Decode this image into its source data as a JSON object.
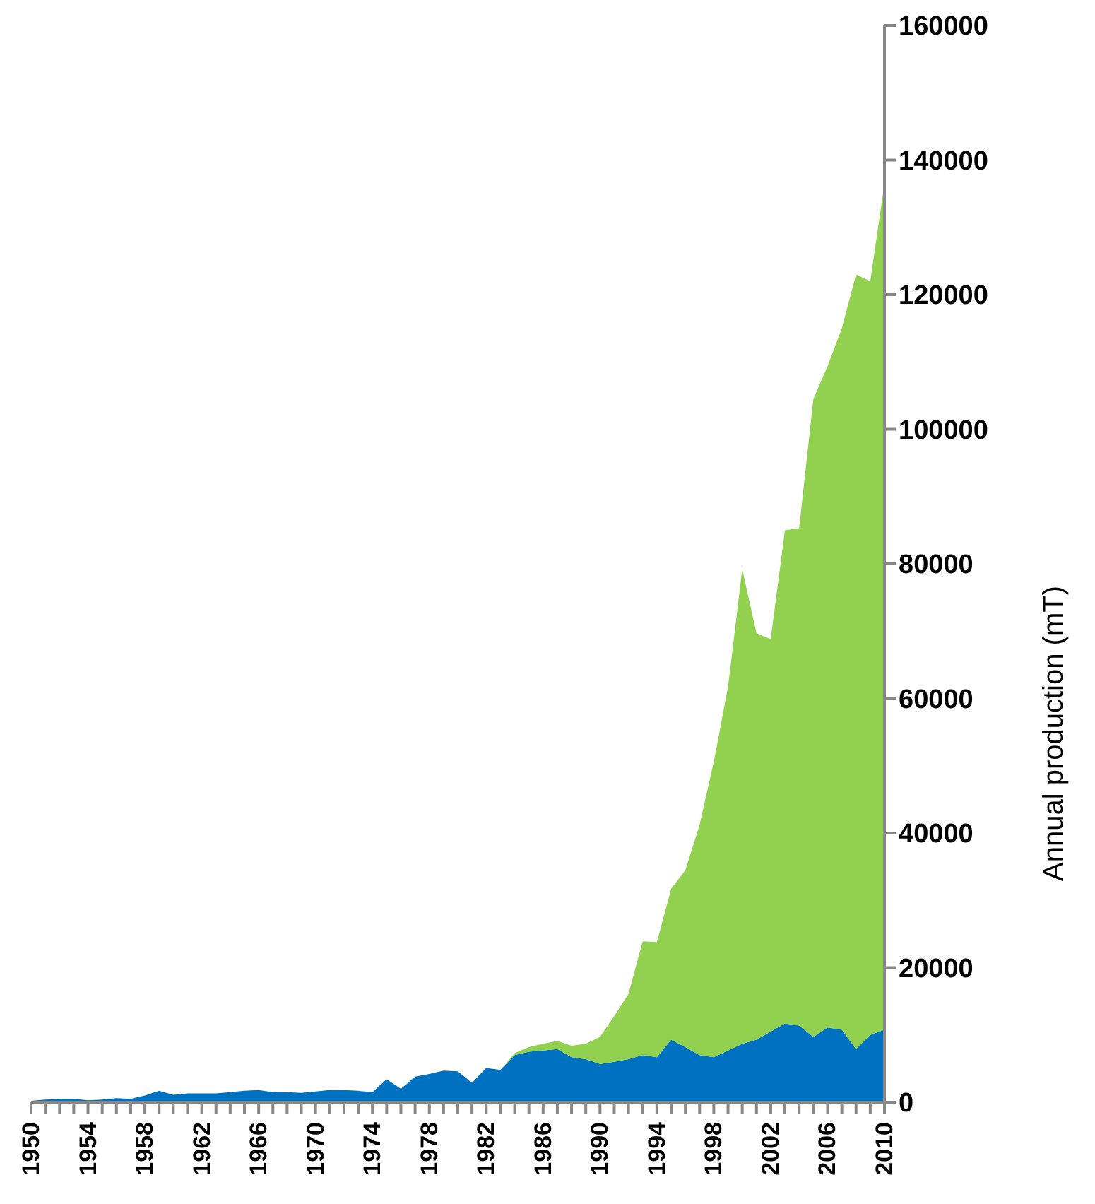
{
  "chart_data": {
    "type": "area",
    "stacked": true,
    "ylabel": "Annual production (mT)",
    "x": [
      1950,
      1951,
      1952,
      1953,
      1954,
      1955,
      1956,
      1957,
      1958,
      1959,
      1960,
      1961,
      1962,
      1963,
      1964,
      1965,
      1966,
      1967,
      1968,
      1969,
      1970,
      1971,
      1972,
      1973,
      1974,
      1975,
      1976,
      1977,
      1978,
      1979,
      1980,
      1981,
      1982,
      1983,
      1984,
      1985,
      1986,
      1987,
      1988,
      1989,
      1990,
      1991,
      1992,
      1993,
      1994,
      1995,
      1996,
      1997,
      1998,
      1999,
      2000,
      2001,
      2002,
      2003,
      2004,
      2005,
      2006,
      2007,
      2008,
      2009,
      2010
    ],
    "series": [
      {
        "color": "#0070c0",
        "values": [
          200,
          400,
          500,
          500,
          300,
          400,
          600,
          500,
          1000,
          1700,
          1100,
          1300,
          1300,
          1300,
          1500,
          1700,
          1800,
          1500,
          1500,
          1400,
          1600,
          1800,
          1800,
          1700,
          1500,
          3400,
          2000,
          3800,
          4200,
          4700,
          4600,
          2900,
          5100,
          4800,
          7000,
          7500,
          7700,
          7900,
          6700,
          6400,
          5700,
          6000,
          6400,
          7000,
          6700,
          9300,
          8200,
          7000,
          6700,
          7700,
          8700,
          9300,
          10500,
          11700,
          11400,
          9700,
          11100,
          10800,
          7900,
          10000,
          10800
        ]
      },
      {
        "color": "#92d050",
        "values": [
          0,
          0,
          0,
          0,
          0,
          0,
          0,
          0,
          0,
          0,
          0,
          0,
          0,
          0,
          0,
          0,
          0,
          0,
          0,
          0,
          0,
          0,
          0,
          0,
          0,
          0,
          0,
          0,
          0,
          0,
          0,
          0,
          0,
          0,
          300,
          700,
          1000,
          1200,
          1700,
          2300,
          4000,
          6800,
          9700,
          16900,
          17100,
          22400,
          26300,
          34200,
          43900,
          54000,
          70500,
          60400,
          58300,
          73300,
          73900,
          94800,
          98300,
          104200,
          115100,
          112000,
          125700
        ]
      }
    ],
    "xlim": [
      1950,
      2010
    ],
    "xticks": [
      1950,
      {
        "value": 1951,
        "label": null
      },
      {
        "value": 1952,
        "label": null
      },
      {
        "value": 1953,
        "label": null
      },
      1954,
      {
        "value": 1955,
        "label": null
      },
      {
        "value": 1956,
        "label": null
      },
      {
        "value": 1957,
        "label": null
      },
      1958,
      {
        "value": 1959,
        "label": null
      },
      {
        "value": 1960,
        "label": null
      },
      {
        "value": 1961,
        "label": null
      },
      1962,
      {
        "value": 1963,
        "label": null
      },
      {
        "value": 1964,
        "label": null
      },
      {
        "value": 1965,
        "label": null
      },
      1966,
      {
        "value": 1967,
        "label": null
      },
      {
        "value": 1968,
        "label": null
      },
      {
        "value": 1969,
        "label": null
      },
      1970,
      {
        "value": 1971,
        "label": null
      },
      {
        "value": 1972,
        "label": null
      },
      {
        "value": 1973,
        "label": null
      },
      1974,
      {
        "value": 1975,
        "label": null
      },
      {
        "value": 1976,
        "label": null
      },
      {
        "value": 1977,
        "label": null
      },
      1978,
      {
        "value": 1979,
        "label": null
      },
      {
        "value": 1980,
        "label": null
      },
      {
        "value": 1981,
        "label": null
      },
      1982,
      {
        "value": 1983,
        "label": null
      },
      {
        "value": 1984,
        "label": null
      },
      {
        "value": 1985,
        "label": null
      },
      1986,
      {
        "value": 1987,
        "label": null
      },
      {
        "value": 1988,
        "label": null
      },
      {
        "value": 1989,
        "label": null
      },
      1990,
      {
        "value": 1991,
        "label": null
      },
      {
        "value": 1992,
        "label": null
      },
      {
        "value": 1993,
        "label": null
      },
      1994,
      {
        "value": 1995,
        "label": null
      },
      {
        "value": 1996,
        "label": null
      },
      {
        "value": 1997,
        "label": null
      },
      1998,
      {
        "value": 1999,
        "label": null
      },
      {
        "value": 2000,
        "label": null
      },
      {
        "value": 2001,
        "label": null
      },
      2002,
      {
        "value": 2003,
        "label": null
      },
      {
        "value": 2004,
        "label": null
      },
      {
        "value": 2005,
        "label": null
      },
      2006,
      {
        "value": 2007,
        "label": null
      },
      {
        "value": 2008,
        "label": null
      },
      {
        "value": 2009,
        "label": null
      },
      2010
    ],
    "ylim": [
      0,
      160000
    ],
    "yticks": [
      0,
      20000,
      40000,
      60000,
      80000,
      100000,
      120000,
      140000,
      160000
    ]
  }
}
